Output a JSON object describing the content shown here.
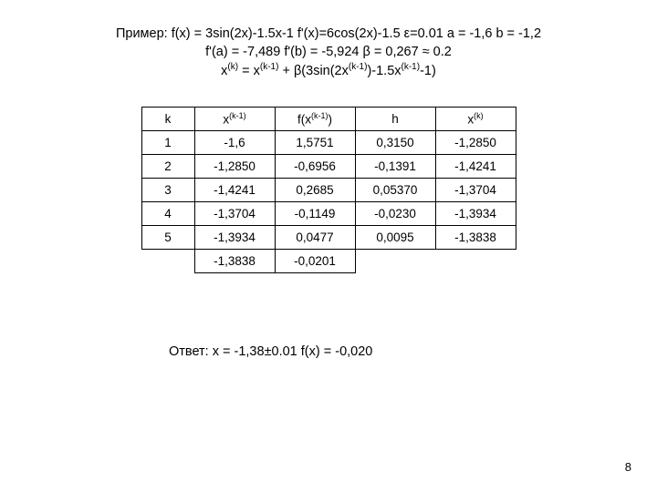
{
  "header": {
    "line1_a": "Пример: f(x) = 3sin(2x)-1.5x-1   f'(x)=6cos(2x)-1.5  ε=0.01  a = -1,6  b = -1,2",
    "line2_a": "f'(a) = -7,489   f'(b) = -5,924 β = 0,267 ≈ 0.2",
    "line3_prefix": "x",
    "line3_sup1": "(k)",
    "line3_mid1": " = x",
    "line3_sup2": "(k-1)",
    "line3_mid2": " + β(3sin(2x",
    "line3_sup3": "(k-1)",
    "line3_mid3": ")-1.5x",
    "line3_sup4": "(k-1)",
    "line3_end": "-1)"
  },
  "th": {
    "c0": "k",
    "c1a": "x",
    "c1s": "(k-1)",
    "c2a": "f(x",
    "c2s": "(k-1)",
    "c2b": ")",
    "c3": "h",
    "c4a": "x",
    "c4s": "(k)"
  },
  "rows": [
    {
      "k": "1",
      "x": "-1,6",
      "f": "1,5751",
      "h": "0,3150",
      "xk": "-1,2850"
    },
    {
      "k": "2",
      "x": "-1,2850",
      "f": "-0,6956",
      "h": "-0,1391",
      "xk": "-1,4241"
    },
    {
      "k": "3",
      "x": "-1,4241",
      "f": "0,2685",
      "h": "0,05370",
      "xk": "-1,3704"
    },
    {
      "k": "4",
      "x": "-1,3704",
      "f": "-0,1149",
      "h": "-0,0230",
      "xk": "-1,3934"
    },
    {
      "k": "5",
      "x": "-1,3934",
      "f": "0,0477",
      "h": "0,0095",
      "xk": "-1,3838"
    }
  ],
  "last": {
    "x": "-1,3838",
    "f": "-0,0201"
  },
  "answer": "Ответ:  x = -1,38±0.01    f(x) = -0,020",
  "page": "8"
}
